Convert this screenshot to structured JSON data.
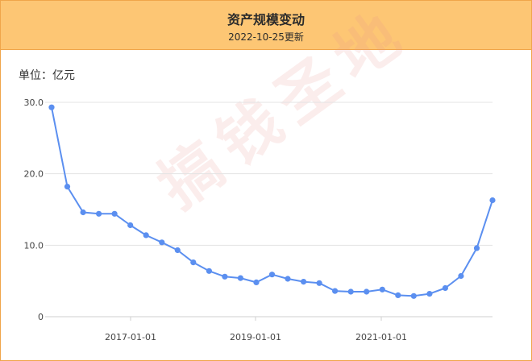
{
  "header": {
    "title": "资产规模变动",
    "subtitle": "2022-10-25更新"
  },
  "unit_label": "单位：亿元",
  "watermark": "搞钱圣地",
  "colors": {
    "header_bg": "#fdc674",
    "border": "#f0a54a",
    "line": "#5b8ff0",
    "grid": "#e3e3e3"
  },
  "chart_data": {
    "type": "line",
    "title": "资产规模变动",
    "xlabel": "",
    "ylabel": "亿元",
    "ylim": [
      0,
      30
    ],
    "yticks": [
      "0",
      "10.0",
      "20.0",
      "30.0"
    ],
    "xtick_labels": [
      "2017-01-01",
      "2019-01-01",
      "2021-01-01"
    ],
    "grid": true,
    "series": [
      {
        "values": [
          29.3,
          18.2,
          14.6,
          14.4,
          14.4,
          12.8,
          11.4,
          10.4,
          9.3,
          7.6,
          6.4,
          5.6,
          5.4,
          4.8,
          5.9,
          5.3,
          4.9,
          4.7,
          3.6,
          3.5,
          3.5,
          3.8,
          3.0,
          2.9,
          3.2,
          4.0,
          5.7,
          9.6,
          16.3
        ]
      }
    ]
  }
}
